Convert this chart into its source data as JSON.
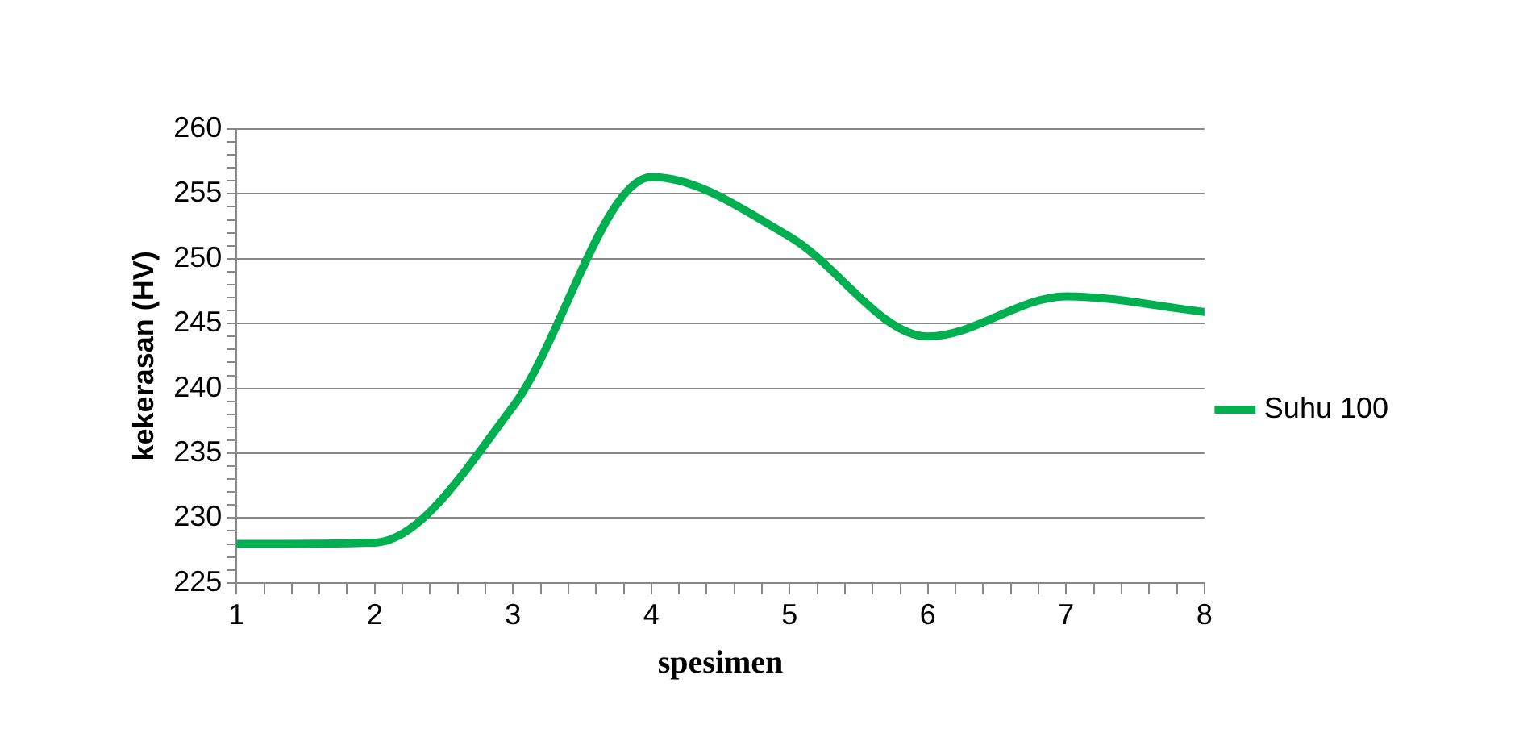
{
  "chart_data": {
    "type": "line",
    "xlabel": "spesimen",
    "ylabel": "kekerasan (HV)",
    "x": [
      1,
      2,
      3,
      4,
      5,
      6,
      7,
      8
    ],
    "series": [
      {
        "name": "Suhu 100",
        "color": "#00b050",
        "values": [
          228,
          228.1,
          238.6,
          256.3,
          251.7,
          244,
          247.1,
          245.9
        ]
      }
    ],
    "xlim": [
      1,
      8
    ],
    "xticks": [
      1,
      {
        "value": 1.2,
        "label": null
      },
      {
        "value": 1.4,
        "label": null
      },
      {
        "value": 1.6,
        "label": null
      },
      {
        "value": 1.8,
        "label": null
      },
      2,
      {
        "value": 2.2,
        "label": null
      },
      {
        "value": 2.4,
        "label": null
      },
      {
        "value": 2.6,
        "label": null
      },
      {
        "value": 2.8,
        "label": null
      },
      3,
      {
        "value": 3.2,
        "label": null
      },
      {
        "value": 3.4,
        "label": null
      },
      {
        "value": 3.6,
        "label": null
      },
      {
        "value": 3.8,
        "label": null
      },
      4,
      {
        "value": 4.2,
        "label": null
      },
      {
        "value": 4.4,
        "label": null
      },
      {
        "value": 4.6,
        "label": null
      },
      {
        "value": 4.8,
        "label": null
      },
      5,
      {
        "value": 5.2,
        "label": null
      },
      {
        "value": 5.4,
        "label": null
      },
      {
        "value": 5.6,
        "label": null
      },
      {
        "value": 5.8,
        "label": null
      },
      6,
      {
        "value": 6.2,
        "label": null
      },
      {
        "value": 6.4,
        "label": null
      },
      {
        "value": 6.6,
        "label": null
      },
      {
        "value": 6.8,
        "label": null
      },
      7,
      {
        "value": 7.2,
        "label": null
      },
      {
        "value": 7.4,
        "label": null
      },
      {
        "value": 7.6,
        "label": null
      },
      {
        "value": 7.8,
        "label": null
      },
      8
    ],
    "ylim": [
      225,
      260
    ],
    "yticks": [
      225,
      {
        "value": 226,
        "label": null
      },
      {
        "value": 227,
        "label": null
      },
      {
        "value": 228,
        "label": null
      },
      {
        "value": 229,
        "label": null
      },
      230,
      {
        "value": 231,
        "label": null
      },
      {
        "value": 232,
        "label": null
      },
      {
        "value": 233,
        "label": null
      },
      {
        "value": 234,
        "label": null
      },
      235,
      {
        "value": 236,
        "label": null
      },
      {
        "value": 237,
        "label": null
      },
      {
        "value": 238,
        "label": null
      },
      {
        "value": 239,
        "label": null
      },
      240,
      {
        "value": 241,
        "label": null
      },
      {
        "value": 242,
        "label": null
      },
      {
        "value": 243,
        "label": null
      },
      {
        "value": 244,
        "label": null
      },
      245,
      {
        "value": 246,
        "label": null
      },
      {
        "value": 247,
        "label": null
      },
      {
        "value": 248,
        "label": null
      },
      {
        "value": 249,
        "label": null
      },
      250,
      {
        "value": 251,
        "label": null
      },
      {
        "value": 252,
        "label": null
      },
      {
        "value": 253,
        "label": null
      },
      {
        "value": 254,
        "label": null
      },
      255,
      {
        "value": 256,
        "label": null
      },
      {
        "value": 257,
        "label": null
      },
      {
        "value": 258,
        "label": null
      },
      {
        "value": 259,
        "label": null
      },
      260
    ],
    "grid": "y",
    "legend": "right",
    "marker": "none",
    "line_style": "solid"
  }
}
